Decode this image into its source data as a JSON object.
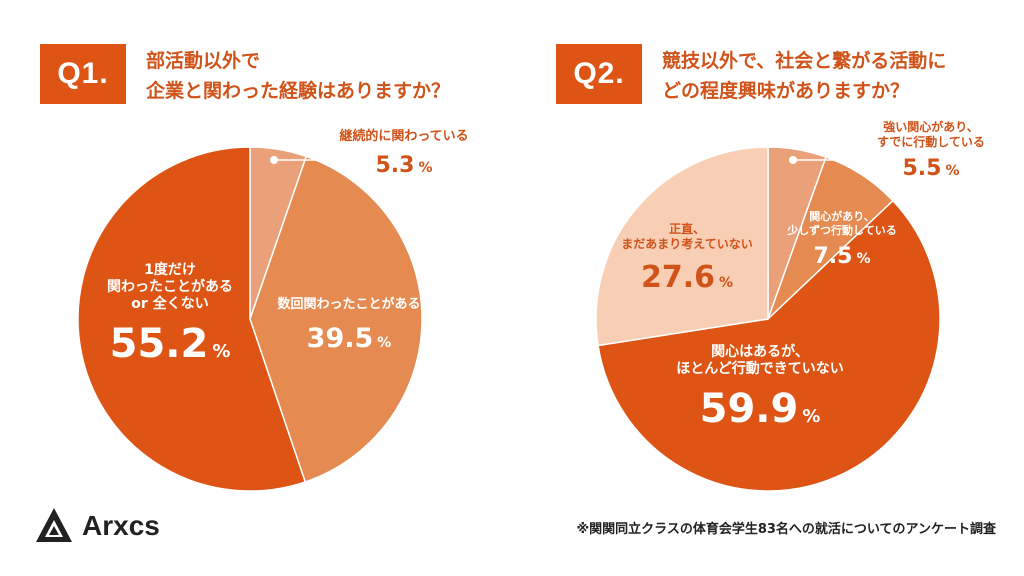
{
  "q1": {
    "badge": "Q1.",
    "title_line1": "部活動以外で",
    "title_line2": "企業と関わった経験はありますか？"
  },
  "q2": {
    "badge": "Q2.",
    "title_line1": "競技以外で、社会と繋がる活動に",
    "title_line2": "どの程度興味がありますか？"
  },
  "labels": {
    "q1_s1_t1": "継続的に関わっている",
    "q1_s1_v": "5.3",
    "q1_s2_t1": "数回関わったことがある",
    "q1_s2_v": "39.5",
    "q1_s3_t1": "1度だけ",
    "q1_s3_t2": "関わったことがある",
    "q1_s3_t3": "or 全くない",
    "q1_s3_v": "55.2",
    "q2_s1_t1": "強い関心があり、",
    "q2_s1_t2": "すでに行動している",
    "q2_s1_v": "5.5",
    "q2_s2_t1": "関心があり、",
    "q2_s2_t2": "少しずつ行動している",
    "q2_s2_v": "7.5",
    "q2_s3_t1": "関心はあるが、",
    "q2_s3_t2": "ほとんど行動できていない",
    "q2_s3_v": "59.9",
    "q2_s4_t1": "正直、",
    "q2_s4_t2": "まだあまり考えていない",
    "q2_s4_v": "27.6",
    "pct": "%"
  },
  "logo": {
    "text": "Arxcs",
    "icon": "arxcs-logo-icon"
  },
  "footnote": "※関関同立クラスの体育会学生83名への就活についてのアンケート調査",
  "colors": {
    "accent": "#dd5414",
    "q1": [
      "#eaa17a",
      "#e58a51",
      "#dd5414"
    ],
    "q2": [
      "#eaa17a",
      "#e58a51",
      "#dd5414",
      "#f8cfb5"
    ]
  },
  "chart_data": [
    {
      "type": "pie",
      "title": "部活動以外で 企業と関わった経験はありますか？",
      "categories": [
        "継続的に関わっている",
        "数回関わったことがある",
        "1度だけ 関わったことがある or 全くない"
      ],
      "values": [
        5.3,
        39.5,
        55.2
      ],
      "colors": [
        "#eaa17a",
        "#e58a51",
        "#dd5414"
      ]
    },
    {
      "type": "pie",
      "title": "競技以外で、社会と繋がる活動に どの程度興味がありますか？",
      "categories": [
        "強い関心があり、すでに行動している",
        "関心があり、少しずつ行動している",
        "関心はあるが、ほとんど行動できていない",
        "正直、まだあまり考えていない"
      ],
      "values": [
        5.5,
        7.5,
        59.9,
        27.6
      ],
      "colors": [
        "#eaa17a",
        "#e58a51",
        "#dd5414",
        "#f8cfb5"
      ]
    }
  ]
}
